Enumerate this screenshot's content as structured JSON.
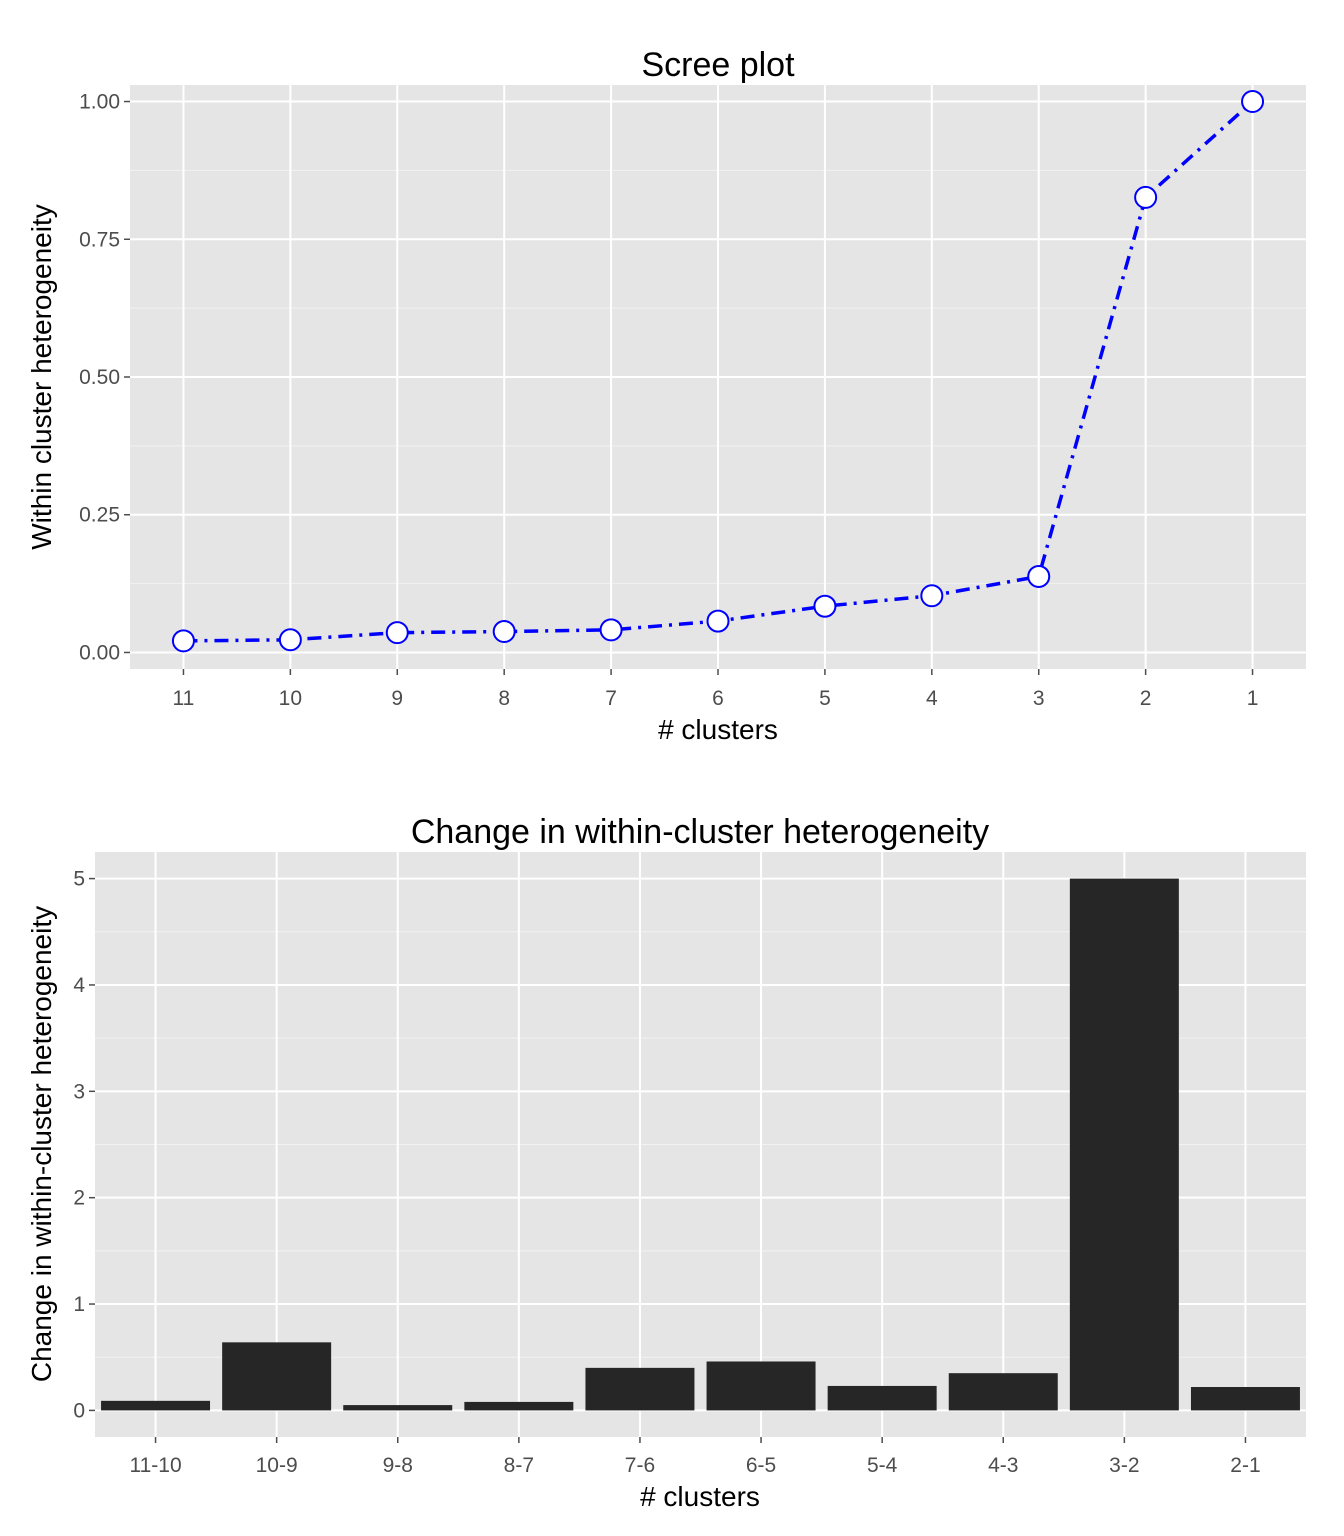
{
  "chart_data": [
    {
      "type": "line",
      "title": "Scree plot",
      "xlabel": "# clusters",
      "ylabel": "Within cluster heterogeneity",
      "x": [
        "11",
        "10",
        "9",
        "8",
        "7",
        "6",
        "5",
        "4",
        "3",
        "2",
        "1"
      ],
      "values": [
        0.021,
        0.023,
        0.036,
        0.038,
        0.041,
        0.057,
        0.084,
        0.103,
        0.138,
        0.826,
        1.0
      ],
      "yticks": [
        "0.00",
        "0.25",
        "0.50",
        "0.75",
        "1.00"
      ],
      "ylim": [
        -0.03,
        1.03
      ],
      "grid": true,
      "line_color": "#0000ff",
      "line_style": "dash-dot"
    },
    {
      "type": "bar",
      "title": "Change in within-cluster heterogeneity",
      "xlabel": "# clusters",
      "ylabel": "Change in within-cluster heterogeneity",
      "categories": [
        "11-10",
        "10-9",
        "9-8",
        "8-7",
        "7-6",
        "6-5",
        "5-4",
        "4-3",
        "3-2",
        "2-1"
      ],
      "values": [
        0.09,
        0.64,
        0.05,
        0.08,
        0.4,
        0.46,
        0.23,
        0.35,
        5.0,
        0.22
      ],
      "yticks": [
        "0",
        "1",
        "2",
        "3",
        "4",
        "5"
      ],
      "ylim": [
        -0.25,
        5.25
      ],
      "grid": true,
      "bar_color": "#262626"
    }
  ]
}
